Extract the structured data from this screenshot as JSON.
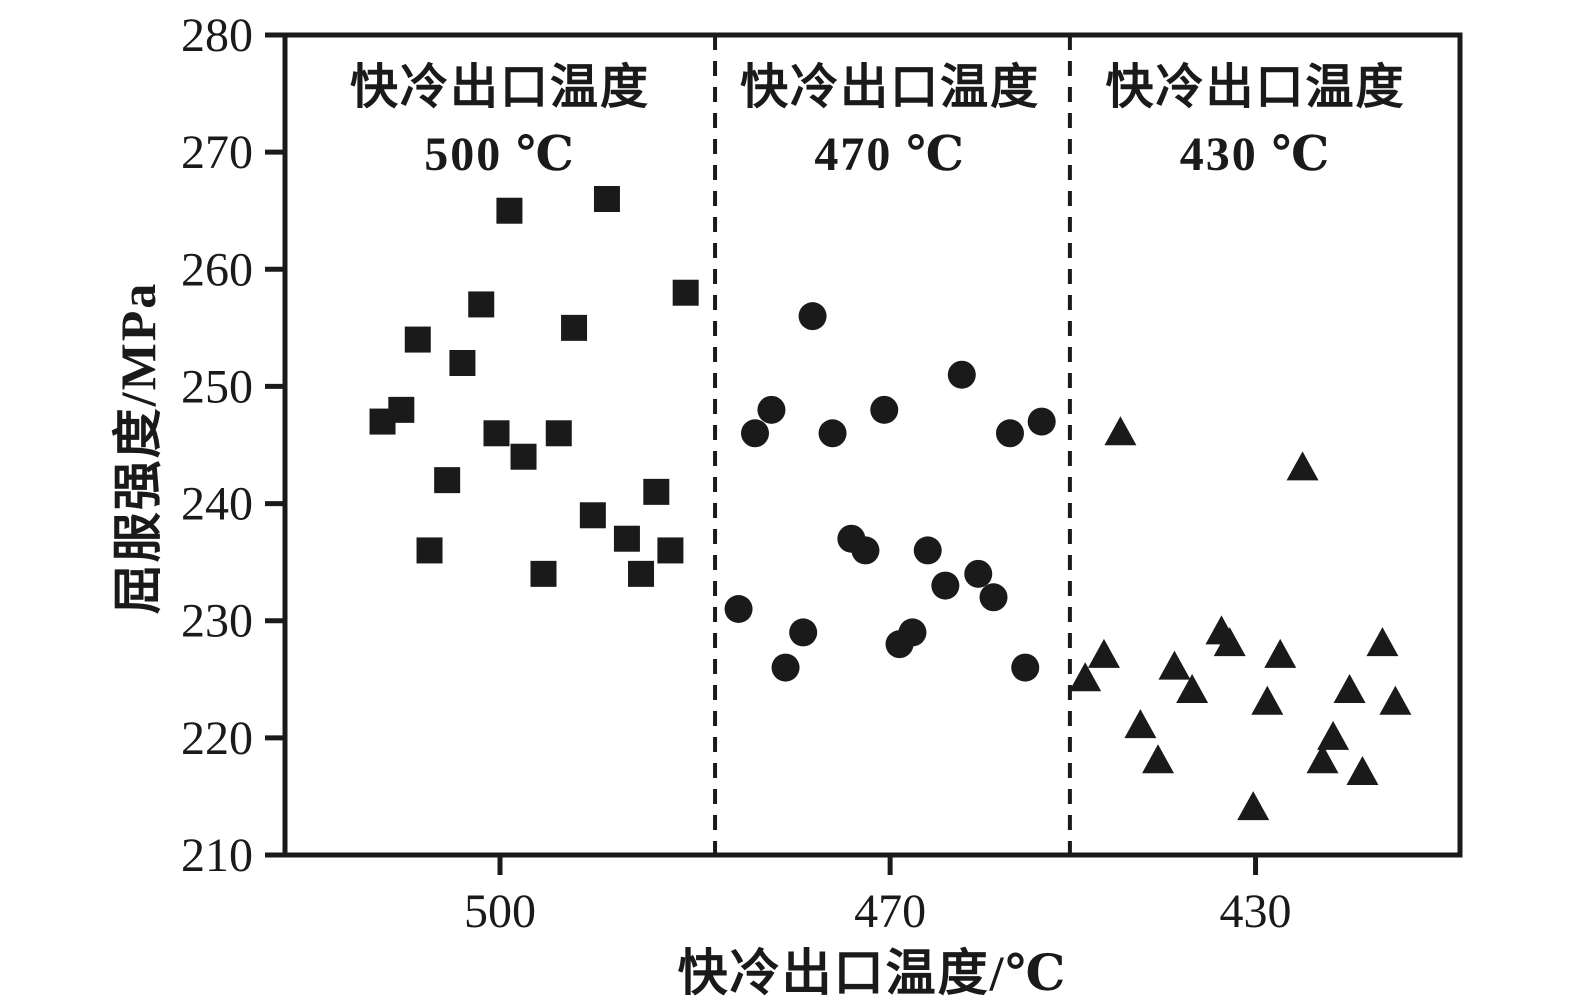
{
  "chart_data": {
    "type": "scatter",
    "title": "",
    "xlabel": "快冷出口温度/℃",
    "ylabel": "屈服强度/MPa",
    "ylim": [
      210,
      280
    ],
    "yticks": [
      210,
      220,
      230,
      240,
      250,
      260,
      270,
      280
    ],
    "xticks": [
      {
        "label": "500",
        "x": 0.183
      },
      {
        "label": "470",
        "x": 0.515
      },
      {
        "label": "430",
        "x": 0.826
      }
    ],
    "dividers": [
      0.366,
      0.668
    ],
    "grid": false,
    "legend_position": "none",
    "ink_color": "#1a1a1a",
    "series": [
      {
        "name": "快冷出口温度 500 ℃",
        "marker": "square",
        "label_lines": [
          "快冷出口温度",
          "500 ℃"
        ],
        "label_x": 0.183,
        "points": [
          [
            0.083,
            247
          ],
          [
            0.099,
            248
          ],
          [
            0.113,
            254
          ],
          [
            0.123,
            236
          ],
          [
            0.138,
            242
          ],
          [
            0.151,
            252
          ],
          [
            0.167,
            257
          ],
          [
            0.18,
            246
          ],
          [
            0.191,
            265
          ],
          [
            0.203,
            244
          ],
          [
            0.22,
            234
          ],
          [
            0.233,
            246
          ],
          [
            0.246,
            255
          ],
          [
            0.262,
            239
          ],
          [
            0.274,
            266
          ],
          [
            0.291,
            237
          ],
          [
            0.303,
            234
          ],
          [
            0.316,
            241
          ],
          [
            0.328,
            236
          ],
          [
            0.341,
            258
          ]
        ]
      },
      {
        "name": "快冷出口温度 470 ℃",
        "marker": "circle",
        "label_lines": [
          "快冷出口温度",
          "470 ℃"
        ],
        "label_x": 0.515,
        "points": [
          [
            0.386,
            231
          ],
          [
            0.4,
            246
          ],
          [
            0.414,
            248
          ],
          [
            0.426,
            226
          ],
          [
            0.441,
            229
          ],
          [
            0.449,
            256
          ],
          [
            0.466,
            246
          ],
          [
            0.482,
            237
          ],
          [
            0.494,
            236
          ],
          [
            0.51,
            248
          ],
          [
            0.523,
            228
          ],
          [
            0.534,
            229
          ],
          [
            0.547,
            236
          ],
          [
            0.562,
            233
          ],
          [
            0.576,
            251
          ],
          [
            0.59,
            234
          ],
          [
            0.603,
            232
          ],
          [
            0.617,
            246
          ],
          [
            0.63,
            226
          ],
          [
            0.644,
            247
          ]
        ]
      },
      {
        "name": "快冷出口温度 430 ℃",
        "marker": "triangle",
        "label_lines": [
          "快冷出口温度",
          "430 ℃"
        ],
        "label_x": 0.826,
        "points": [
          [
            0.681,
            225
          ],
          [
            0.697,
            227
          ],
          [
            0.711,
            246
          ],
          [
            0.728,
            221
          ],
          [
            0.743,
            218
          ],
          [
            0.757,
            226
          ],
          [
            0.772,
            224
          ],
          [
            0.797,
            229
          ],
          [
            0.804,
            228
          ],
          [
            0.824,
            214
          ],
          [
            0.836,
            223
          ],
          [
            0.847,
            227
          ],
          [
            0.866,
            243
          ],
          [
            0.883,
            218
          ],
          [
            0.892,
            220
          ],
          [
            0.906,
            224
          ],
          [
            0.917,
            217
          ],
          [
            0.934,
            228
          ],
          [
            0.945,
            223
          ]
        ]
      }
    ]
  }
}
